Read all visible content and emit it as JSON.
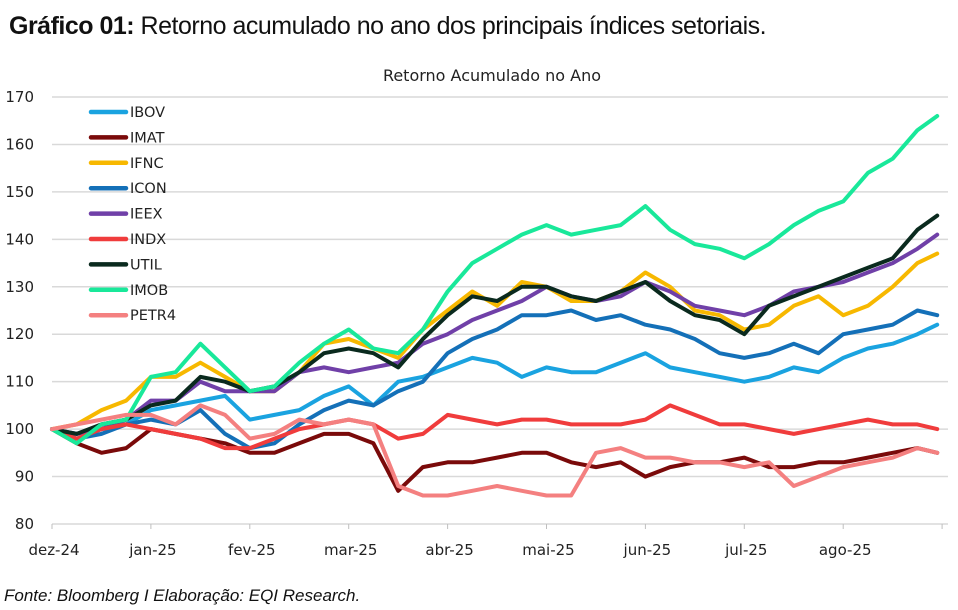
{
  "figure": {
    "label": "Gráfico 01:",
    "title": " Retorno acumulado no ano dos principais índices setoriais.",
    "source": "Fonte: Bloomberg I Elaboração: EQI Research."
  },
  "chart_data": {
    "type": "line",
    "title": "Retorno Acumulado no Ano",
    "xlabel": "",
    "ylabel": "",
    "ylim": [
      80,
      170
    ],
    "yticks": [
      80,
      90,
      100,
      110,
      120,
      130,
      140,
      150,
      160,
      170
    ],
    "grid": true,
    "legend_position": "top-left",
    "x_tick_labels": [
      "dez-24",
      "jan-25",
      "fev-25",
      "mar-25",
      "abr-25",
      "mai-25",
      "jun-25",
      "jul-25",
      "ago-25"
    ],
    "x_unit": "months since dez-24",
    "x": [
      0,
      0.25,
      0.5,
      0.75,
      1.0,
      1.25,
      1.5,
      1.75,
      2.0,
      2.25,
      2.5,
      2.75,
      3.0,
      3.25,
      3.5,
      3.75,
      4.0,
      4.25,
      4.5,
      4.75,
      5.0,
      5.25,
      5.5,
      5.75,
      6.0,
      6.25,
      6.5,
      6.75,
      7.0,
      7.25,
      7.5,
      7.75,
      8.0,
      8.25,
      8.5,
      8.75,
      8.95
    ],
    "series": [
      {
        "name": "IBOV",
        "color": "#1aa3e0",
        "values": [
          100,
          99,
          100,
          101,
          104,
          105,
          106,
          107,
          102,
          103,
          104,
          107,
          109,
          105,
          110,
          111,
          113,
          115,
          114,
          111,
          113,
          112,
          112,
          114,
          116,
          113,
          112,
          111,
          110,
          111,
          113,
          112,
          115,
          117,
          118,
          120,
          122
        ]
      },
      {
        "name": "IMAT",
        "color": "#7a0a0a",
        "values": [
          100,
          97,
          95,
          96,
          100,
          99,
          98,
          97,
          95,
          95,
          97,
          99,
          99,
          97,
          87,
          92,
          93,
          93,
          94,
          95,
          95,
          93,
          92,
          93,
          90,
          92,
          93,
          93,
          94,
          92,
          92,
          93,
          93,
          94,
          95,
          96,
          95
        ]
      },
      {
        "name": "IFNC",
        "color": "#f7b800",
        "values": [
          100,
          101,
          104,
          106,
          111,
          111,
          114,
          111,
          108,
          108,
          112,
          118,
          119,
          117,
          115,
          121,
          125,
          129,
          126,
          131,
          130,
          127,
          127,
          129,
          133,
          130,
          125,
          124,
          121,
          122,
          126,
          128,
          124,
          126,
          130,
          135,
          137
        ]
      },
      {
        "name": "ICON",
        "color": "#1470b8",
        "values": [
          100,
          98,
          99,
          101,
          102,
          101,
          104,
          99,
          96,
          97,
          101,
          104,
          106,
          105,
          108,
          110,
          116,
          119,
          121,
          124,
          124,
          125,
          123,
          124,
          122,
          121,
          119,
          116,
          115,
          116,
          118,
          116,
          120,
          121,
          122,
          125,
          124
        ]
      },
      {
        "name": "IEEX",
        "color": "#7040a8",
        "values": [
          100,
          99,
          100,
          102,
          106,
          106,
          110,
          108,
          108,
          108,
          112,
          113,
          112,
          113,
          114,
          118,
          120,
          123,
          125,
          127,
          130,
          128,
          127,
          128,
          131,
          129,
          126,
          125,
          124,
          126,
          129,
          130,
          131,
          133,
          135,
          138,
          141
        ]
      },
      {
        "name": "INDX",
        "color": "#f03c3c",
        "values": [
          100,
          98,
          100,
          101,
          100,
          99,
          98,
          96,
          96,
          98,
          100,
          101,
          102,
          101,
          98,
          99,
          103,
          102,
          101,
          102,
          102,
          101,
          101,
          101,
          102,
          105,
          103,
          101,
          101,
          100,
          99,
          100,
          101,
          102,
          101,
          101,
          100
        ]
      },
      {
        "name": "UTIL",
        "color": "#0a2a1e",
        "values": [
          100,
          99,
          101,
          102,
          105,
          106,
          111,
          110,
          108,
          109,
          112,
          116,
          117,
          116,
          113,
          119,
          124,
          128,
          127,
          130,
          130,
          128,
          127,
          129,
          131,
          127,
          124,
          123,
          120,
          126,
          128,
          130,
          132,
          134,
          136,
          142,
          145
        ]
      },
      {
        "name": "IMOB",
        "color": "#19e89a",
        "values": [
          100,
          97,
          101,
          102,
          111,
          112,
          118,
          113,
          108,
          109,
          114,
          118,
          121,
          117,
          116,
          121,
          129,
          135,
          138,
          141,
          143,
          141,
          142,
          143,
          147,
          142,
          139,
          138,
          136,
          139,
          143,
          146,
          148,
          154,
          157,
          163,
          166
        ]
      },
      {
        "name": "PETR4",
        "color": "#f48080",
        "values": [
          100,
          101,
          102,
          103,
          103,
          101,
          105,
          103,
          98,
          99,
          102,
          101,
          102,
          101,
          88,
          86,
          86,
          87,
          88,
          87,
          86,
          86,
          95,
          96,
          94,
          94,
          93,
          93,
          92,
          93,
          88,
          90,
          92,
          93,
          94,
          96,
          95
        ]
      }
    ]
  }
}
